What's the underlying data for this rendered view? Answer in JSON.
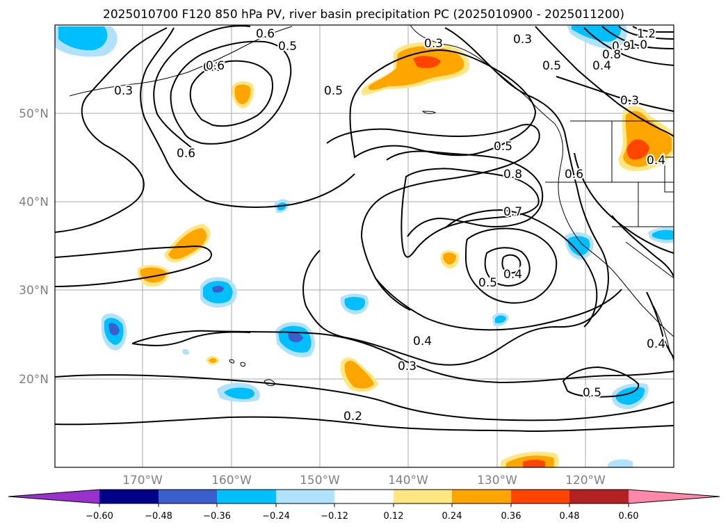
{
  "title": "2025010700 F120 850 hPa PV, river basin precipitation PC (2025010900 - 2025011200)",
  "map": {
    "lat_ticks": [
      "50°N",
      "40°N",
      "30°N",
      "20°N"
    ],
    "lon_ticks": [
      "170°W",
      "160°W",
      "150°W",
      "140°W",
      "130°W",
      "120°W"
    ],
    "gridline_color": "#a9a9a9",
    "coastline_color": "#000000"
  },
  "colorbar": {
    "ticks": [
      "−0.60",
      "−0.48",
      "−0.36",
      "−0.24",
      "−0.12",
      "0.12",
      "0.24",
      "0.36",
      "0.48",
      "0.60"
    ],
    "colors": [
      "#9932cc",
      "#00008b",
      "#3a5fcd",
      "#00bfff",
      "#b0e2ff",
      "#ffffff",
      "#ffe680",
      "#ffa500",
      "#ff4500",
      "#b22222",
      "#ff88aa"
    ]
  },
  "contour_labels": [
    "0.6",
    "0.5",
    "0.3",
    "0.5",
    "0.3",
    "0.3",
    "0.5",
    "0.6",
    "0.6",
    "0.5",
    "0.8",
    "0.6",
    "0.7",
    "0.5",
    "0.4",
    "0.4",
    "0.3",
    "0.2",
    "0.5",
    "0.4",
    "0.3",
    "0.4",
    "1.2",
    "1.0",
    "0.9",
    "0.8",
    "0.3",
    "0.4"
  ],
  "shading_colors": {
    "neg_light": "#b0e2ff",
    "neg_mid": "#00bfff",
    "neg_strong": "#3a5fcd",
    "pos_light": "#ffe680",
    "pos_mid": "#ffa500",
    "pos_strong": "#ff4500"
  }
}
